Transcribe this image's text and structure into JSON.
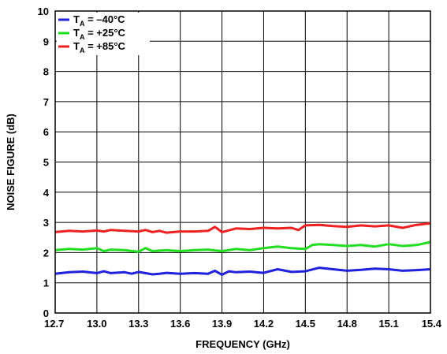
{
  "chart_data": {
    "type": "line",
    "title": "",
    "xlabel": "FREQUENCY (GHz)",
    "ylabel": "NOISE FIGURE (dB)",
    "xlim": [
      12.7,
      15.4
    ],
    "ylim": [
      0,
      10
    ],
    "x_ticks": [
      "12.7",
      "13.0",
      "13.3",
      "13.6",
      "13.9",
      "14.2",
      "14.5",
      "14.8",
      "15.1",
      "15.4"
    ],
    "y_ticks": [
      "0",
      "1",
      "2",
      "3",
      "4",
      "5",
      "6",
      "7",
      "8",
      "9",
      "10"
    ],
    "grid": true,
    "legend_position": "top-left",
    "series": [
      {
        "name_prefix": "T",
        "name_sub": "A",
        "name_suffix": " = –40°C",
        "color": "#2020dd",
        "x": [
          12.7,
          12.8,
          12.9,
          13.0,
          13.05,
          13.1,
          13.2,
          13.25,
          13.3,
          13.4,
          13.45,
          13.5,
          13.6,
          13.7,
          13.8,
          13.85,
          13.9,
          13.95,
          14.0,
          14.1,
          14.2,
          14.3,
          14.4,
          14.5,
          14.6,
          14.7,
          14.8,
          14.9,
          15.0,
          15.1,
          15.2,
          15.3,
          15.4
        ],
        "y": [
          1.3,
          1.35,
          1.37,
          1.32,
          1.38,
          1.32,
          1.35,
          1.3,
          1.36,
          1.28,
          1.3,
          1.33,
          1.3,
          1.32,
          1.3,
          1.4,
          1.27,
          1.38,
          1.35,
          1.37,
          1.33,
          1.45,
          1.36,
          1.38,
          1.5,
          1.45,
          1.4,
          1.43,
          1.47,
          1.45,
          1.4,
          1.42,
          1.45
        ]
      },
      {
        "name_prefix": "T",
        "name_sub": "A",
        "name_suffix": " = +25°C",
        "color": "#22dd22",
        "x": [
          12.7,
          12.8,
          12.9,
          13.0,
          13.05,
          13.1,
          13.2,
          13.3,
          13.35,
          13.4,
          13.5,
          13.6,
          13.7,
          13.8,
          13.9,
          14.0,
          14.1,
          14.2,
          14.3,
          14.4,
          14.5,
          14.55,
          14.6,
          14.7,
          14.8,
          14.9,
          15.0,
          15.1,
          15.2,
          15.3,
          15.4
        ],
        "y": [
          2.08,
          2.12,
          2.1,
          2.15,
          2.05,
          2.1,
          2.08,
          2.03,
          2.15,
          2.05,
          2.08,
          2.05,
          2.08,
          2.1,
          2.05,
          2.12,
          2.08,
          2.15,
          2.2,
          2.15,
          2.12,
          2.25,
          2.28,
          2.25,
          2.22,
          2.25,
          2.2,
          2.28,
          2.22,
          2.25,
          2.35
        ]
      },
      {
        "name_prefix": "T",
        "name_sub": "A",
        "name_suffix": " = +85°C",
        "color": "#ee2020",
        "x": [
          12.7,
          12.8,
          12.9,
          13.0,
          13.05,
          13.1,
          13.2,
          13.3,
          13.35,
          13.4,
          13.45,
          13.5,
          13.6,
          13.7,
          13.8,
          13.85,
          13.9,
          14.0,
          14.1,
          14.2,
          14.3,
          14.4,
          14.45,
          14.5,
          14.6,
          14.7,
          14.8,
          14.9,
          15.0,
          15.1,
          15.2,
          15.3,
          15.4
        ],
        "y": [
          2.68,
          2.72,
          2.7,
          2.73,
          2.7,
          2.75,
          2.72,
          2.7,
          2.75,
          2.68,
          2.72,
          2.66,
          2.7,
          2.7,
          2.72,
          2.85,
          2.68,
          2.8,
          2.78,
          2.82,
          2.8,
          2.82,
          2.75,
          2.9,
          2.92,
          2.88,
          2.85,
          2.9,
          2.87,
          2.9,
          2.82,
          2.92,
          2.97
        ]
      }
    ]
  }
}
